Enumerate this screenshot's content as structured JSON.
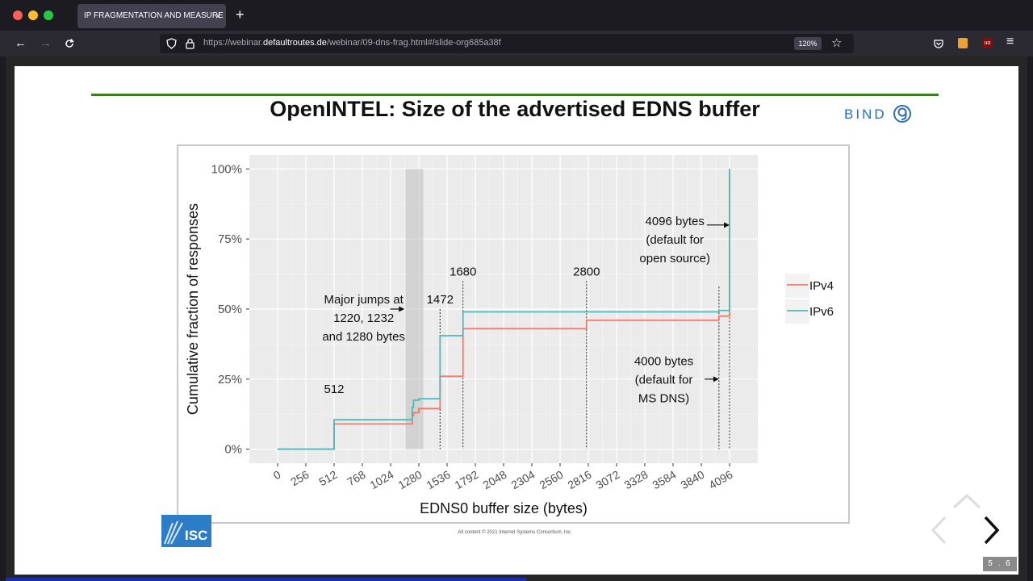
{
  "browser": {
    "tab_title": "IP FRAGMENTATION AND MEASURE",
    "tab_close": "×",
    "new_tab": "+",
    "url_prefix": "https://webinar.",
    "url_domain": "defaultroutes.de",
    "url_path": "/webinar/09-dns-frag.html#/slide-org685a38f",
    "zoom": "120%"
  },
  "slide": {
    "title": "OpenINTEL: Size of the advertised EDNS buffer",
    "logo_text": "BIND",
    "copyright": "All content © 2021 Internet Systems Consortium, Inc.",
    "isc_logo_text": "ISC",
    "slide_number": "5 . 6"
  },
  "colors": {
    "ipv4": "#f8766d",
    "ipv6": "#4fb8b8",
    "title_rule": "#3a7d1e",
    "panel": "#ebebeb"
  },
  "chart_data": {
    "type": "line",
    "xlabel": "EDNS0 buffer size (bytes)",
    "ylabel": "Cumulative fraction of responses",
    "xlim": [
      -256,
      4352
    ],
    "ylim": [
      -5,
      105
    ],
    "x_ticks": [
      0,
      256,
      512,
      768,
      1024,
      1280,
      1536,
      1792,
      2048,
      2304,
      2560,
      2816,
      3072,
      3328,
      3584,
      3840,
      4096
    ],
    "y_ticks": [
      0,
      25,
      50,
      75,
      100
    ],
    "y_tick_labels": [
      "0%",
      "25%",
      "50%",
      "75%",
      "100%"
    ],
    "legend_position": "right",
    "series": [
      {
        "name": "IPv4",
        "color": "#f8766d",
        "points": [
          [
            0,
            0
          ],
          [
            512,
            0
          ],
          [
            512,
            9
          ],
          [
            1220,
            9
          ],
          [
            1220,
            12
          ],
          [
            1232,
            12
          ],
          [
            1232,
            13
          ],
          [
            1280,
            13
          ],
          [
            1280,
            14.5
          ],
          [
            1472,
            14.5
          ],
          [
            1472,
            26
          ],
          [
            1680,
            26
          ],
          [
            1680,
            43
          ],
          [
            2800,
            43
          ],
          [
            2800,
            46
          ],
          [
            4000,
            46
          ],
          [
            4000,
            47.5
          ],
          [
            4096,
            47.5
          ],
          [
            4096,
            100
          ]
        ]
      },
      {
        "name": "IPv6",
        "color": "#4fb8b8",
        "points": [
          [
            0,
            0
          ],
          [
            512,
            0
          ],
          [
            512,
            10.5
          ],
          [
            1220,
            10.5
          ],
          [
            1220,
            15
          ],
          [
            1232,
            15
          ],
          [
            1232,
            17.5
          ],
          [
            1280,
            17.5
          ],
          [
            1280,
            18
          ],
          [
            1472,
            18
          ],
          [
            1472,
            40.5
          ],
          [
            1680,
            40.5
          ],
          [
            1680,
            49
          ],
          [
            2800,
            49
          ],
          [
            2800,
            49
          ],
          [
            4000,
            49
          ],
          [
            4000,
            49.5
          ],
          [
            4096,
            49.5
          ],
          [
            4096,
            100
          ]
        ]
      }
    ],
    "highlight_band": [
      1160,
      1320
    ],
    "vlines": [
      512,
      1472,
      1680,
      2800,
      4000,
      4096
    ],
    "annotations": [
      {
        "x": 512,
        "y": 20,
        "text": "512"
      },
      {
        "x": 1472,
        "y": 52,
        "text": "1472"
      },
      {
        "x": 1680,
        "y": 62,
        "text": "1680"
      },
      {
        "x": 2800,
        "y": 62,
        "text": "2800"
      },
      {
        "x": 780,
        "y": 52,
        "lines": [
          "Major jumps at",
          "1220, 1232",
          "and 1280 bytes"
        ]
      },
      {
        "x": 3600,
        "y": 80,
        "lines": [
          "4096 bytes",
          "(default for",
          "open source)"
        ]
      },
      {
        "x": 3500,
        "y": 30,
        "lines": [
          "4000 bytes",
          "(default for",
          "MS DNS)"
        ]
      }
    ]
  }
}
